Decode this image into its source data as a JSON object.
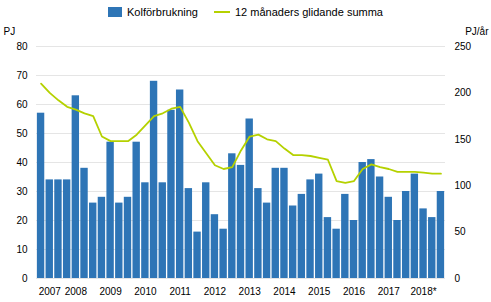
{
  "chart_data": {
    "type": "bar",
    "categories": [
      null,
      "2007",
      null,
      null,
      "2008",
      null,
      null,
      null,
      "2009",
      null,
      null,
      null,
      "2010",
      null,
      null,
      null,
      "2011",
      null,
      null,
      null,
      "2012",
      null,
      null,
      null,
      "2013",
      null,
      null,
      null,
      "2014",
      null,
      null,
      null,
      "2015",
      null,
      null,
      null,
      "2016",
      null,
      null,
      null,
      "2017",
      null,
      null,
      null,
      "2018*",
      null,
      null
    ],
    "series": [
      {
        "name": "Kolförbrukning",
        "type": "bar",
        "color": "#2e75b6",
        "values": [
          57,
          34,
          34,
          34,
          63,
          38,
          26,
          28,
          47,
          26,
          28,
          47,
          33,
          68,
          33,
          58,
          65,
          31,
          16,
          33,
          22,
          17,
          43,
          39,
          55,
          31,
          26,
          38,
          38,
          25,
          29,
          34,
          36,
          21,
          17,
          29,
          20,
          40,
          41,
          35,
          28,
          20,
          30,
          36,
          24,
          21,
          30
        ]
      },
      {
        "name": "12 månaders glidande summa",
        "type": "line",
        "color": "#b5d100",
        "axis": "y2",
        "values": [
          210,
          200,
          192,
          185,
          182,
          178,
          175,
          153,
          148,
          148,
          148,
          155,
          165,
          175,
          178,
          183,
          185,
          168,
          148,
          135,
          122,
          118,
          120,
          138,
          153,
          155,
          150,
          148,
          140,
          133,
          133,
          132,
          130,
          128,
          105,
          103,
          105,
          118,
          123,
          120,
          118,
          115,
          115,
          115,
          114,
          113,
          113
        ]
      }
    ],
    "ylabel": "PJ",
    "y2label": "PJ/år",
    "ylim": [
      0,
      80
    ],
    "yticks": [
      0,
      10,
      20,
      30,
      40,
      50,
      60,
      70,
      80
    ],
    "y2lim": [
      0,
      250
    ],
    "y2ticks": [
      0,
      50,
      100,
      150,
      200,
      250
    ],
    "grid": true,
    "legend": "top"
  }
}
